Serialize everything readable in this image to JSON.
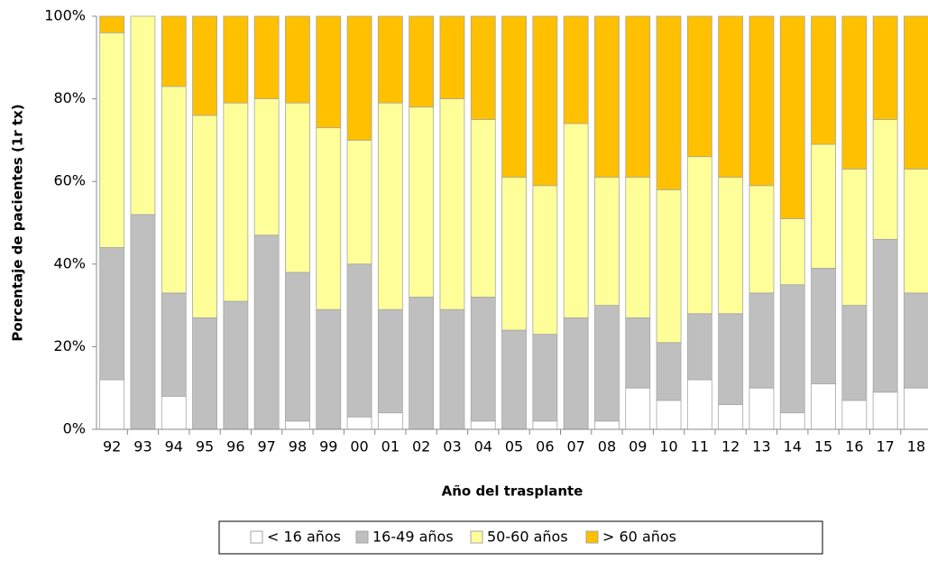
{
  "chart_data": {
    "type": "bar",
    "stacked": true,
    "x_label": "Año del trasplante",
    "y_label": "Porcentaje de pacientes (1r tx)",
    "categories": [
      "92",
      "93",
      "94",
      "95",
      "96",
      "97",
      "98",
      "99",
      "00",
      "01",
      "02",
      "03",
      "04",
      "05",
      "06",
      "07",
      "08",
      "09",
      "10",
      "11",
      "12",
      "13",
      "14",
      "15",
      "16",
      "17",
      "18"
    ],
    "series": [
      {
        "name": "< 16 años",
        "color": "#ffffff",
        "values": [
          12,
          0,
          8,
          0,
          0,
          0,
          2,
          0,
          3,
          4,
          0,
          0,
          2,
          0,
          2,
          0,
          2,
          10,
          7,
          12,
          6,
          10,
          4,
          11,
          7,
          9,
          10
        ]
      },
      {
        "name": "16-49 años",
        "color": "#bfbfbf",
        "values": [
          32,
          52,
          25,
          27,
          31,
          47,
          36,
          29,
          37,
          25,
          32,
          29,
          30,
          24,
          21,
          27,
          28,
          17,
          14,
          16,
          22,
          23,
          31,
          28,
          23,
          37,
          23
        ]
      },
      {
        "name": "50-60 años",
        "color": "#ffff99",
        "values": [
          52,
          48,
          50,
          49,
          48,
          33,
          41,
          44,
          30,
          50,
          46,
          51,
          43,
          37,
          36,
          47,
          31,
          34,
          37,
          38,
          33,
          26,
          16,
          30,
          33,
          29,
          30
        ]
      },
      {
        "name": "> 60 años",
        "color": "#ffc000",
        "values": [
          4,
          0,
          17,
          24,
          21,
          20,
          21,
          27,
          30,
          21,
          22,
          20,
          25,
          39,
          41,
          26,
          39,
          39,
          42,
          34,
          39,
          41,
          49,
          31,
          37,
          25,
          37
        ]
      }
    ],
    "ylim": [
      0,
      100
    ],
    "yticks": [
      {
        "value": 0,
        "label": "0%"
      },
      {
        "value": 20,
        "label": "20%"
      },
      {
        "value": 40,
        "label": "40%"
      },
      {
        "value": 60,
        "label": "60%"
      },
      {
        "value": 80,
        "label": "80%"
      },
      {
        "value": 100,
        "label": "100%"
      }
    ],
    "grid": false
  }
}
